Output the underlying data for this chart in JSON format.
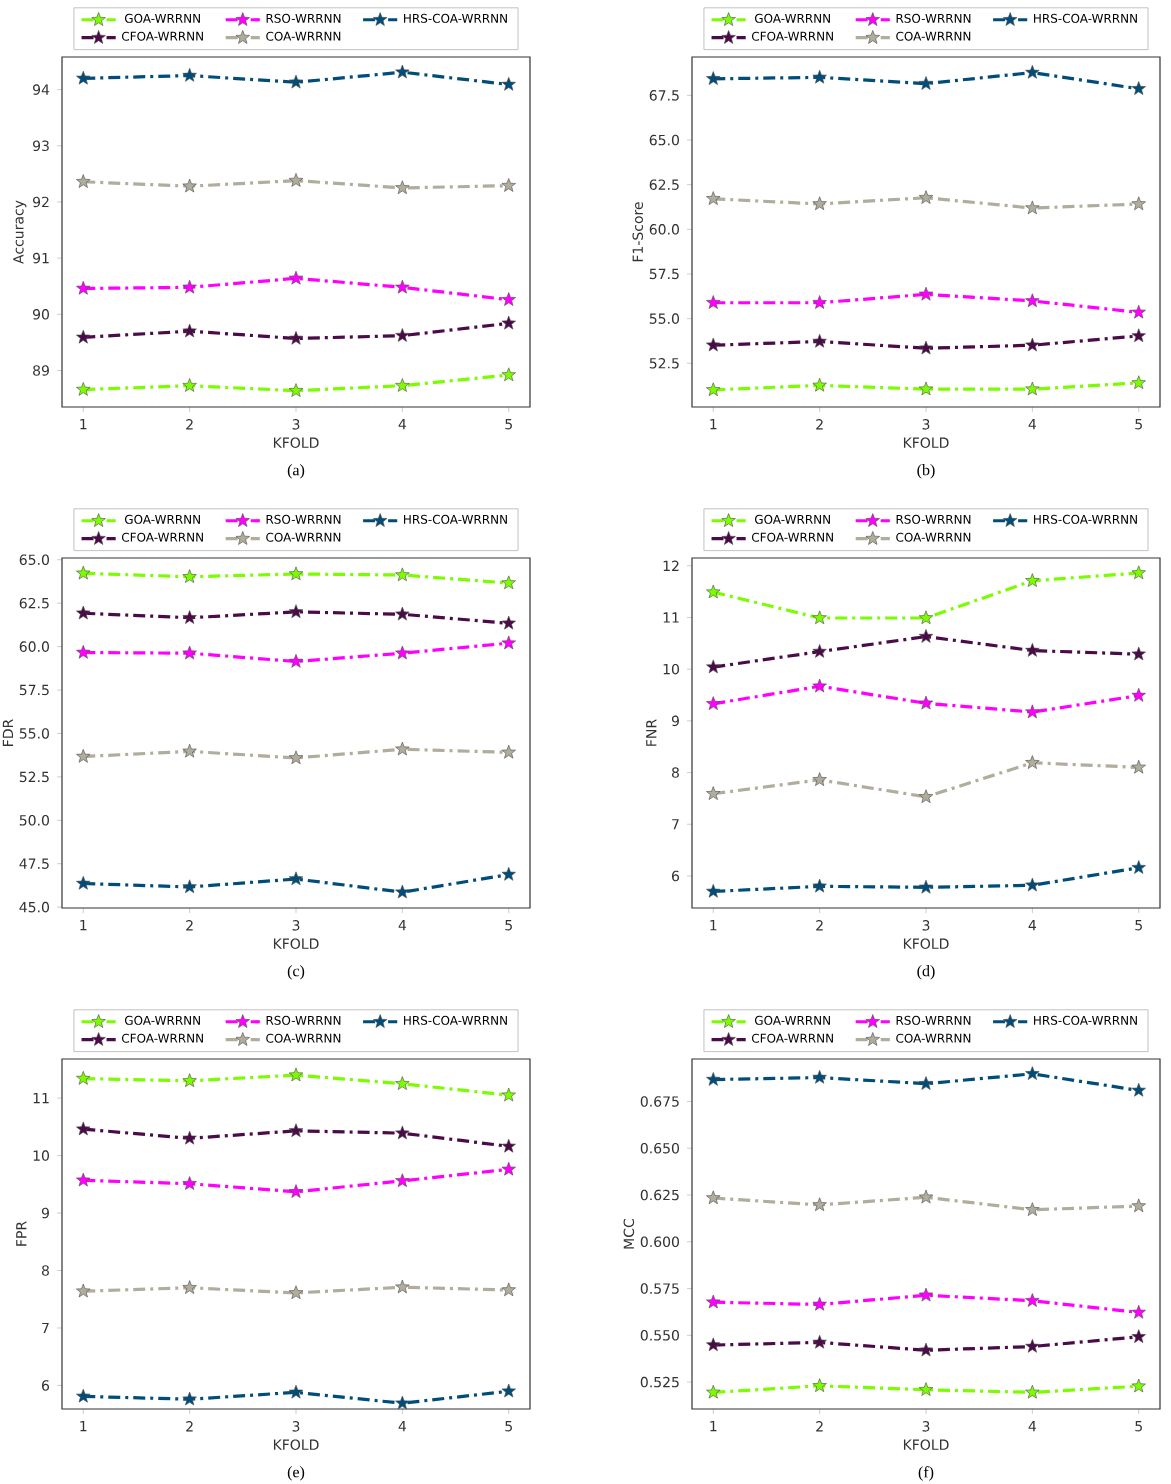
{
  "chart_data": [
    {
      "type": "line",
      "xlabel": "KFOLD",
      "ylabel": "Accuracy",
      "x": [
        1,
        2,
        3,
        4,
        5
      ],
      "xlim": [
        0.8,
        5.2
      ],
      "xticks": [
        1,
        2,
        3,
        4,
        5
      ],
      "ylim": [
        88.35,
        94.58
      ],
      "yticks": [
        89,
        90,
        91,
        92,
        93,
        94
      ],
      "legend": "top",
      "marker": "star",
      "line_style": "dashdot",
      "annotations": [
        "(a)"
      ],
      "series": [
        {
          "name": "GOA-WRRNN",
          "color": "#7cfc00",
          "values": [
            88.66,
            88.73,
            88.64,
            88.73,
            88.92
          ]
        },
        {
          "name": "CFOA-WRRNN",
          "color": "#4b0a48",
          "values": [
            89.59,
            89.7,
            89.57,
            89.62,
            89.84
          ]
        },
        {
          "name": "RSO-WRRNN",
          "color": "#ff00ff",
          "values": [
            90.46,
            90.48,
            90.64,
            90.48,
            90.26
          ]
        },
        {
          "name": "COA-WRRNN",
          "color": "#b0ad9c",
          "values": [
            92.36,
            92.28,
            92.38,
            92.25,
            92.29
          ]
        },
        {
          "name": "HRS-COA-WRRNN",
          "color": "#004d7a",
          "values": [
            94.2,
            94.25,
            94.13,
            94.31,
            94.09
          ]
        }
      ]
    },
    {
      "type": "line",
      "xlabel": "KFOLD",
      "ylabel": "F1-Score",
      "x": [
        1,
        2,
        3,
        4,
        5
      ],
      "xlim": [
        0.8,
        5.2
      ],
      "xticks": [
        1,
        2,
        3,
        4,
        5
      ],
      "ylim": [
        50.05,
        69.65
      ],
      "yticks": [
        52.5,
        {
          "value": 55,
          "label": "55.0"
        },
        57.5,
        {
          "value": 60,
          "label": "60.0"
        },
        62.5,
        {
          "value": 65,
          "label": "65.0"
        },
        67.5
      ],
      "legend": "top",
      "marker": "star",
      "line_style": "dashdot",
      "annotations": [
        "(b)"
      ],
      "series": [
        {
          "name": "GOA-WRRNN",
          "color": "#7cfc00",
          "values": [
            51.01,
            51.26,
            51.05,
            51.05,
            51.4
          ]
        },
        {
          "name": "CFOA-WRRNN",
          "color": "#4b0a48",
          "values": [
            53.51,
            53.72,
            53.34,
            53.51,
            54.03
          ]
        },
        {
          "name": "RSO-WRRNN",
          "color": "#ff00ff",
          "values": [
            55.89,
            55.89,
            56.36,
            55.99,
            55.35
          ]
        },
        {
          "name": "COA-WRRNN",
          "color": "#b0ad9c",
          "values": [
            61.71,
            61.42,
            61.77,
            61.19,
            61.42
          ]
        },
        {
          "name": "HRS-COA-WRRNN",
          "color": "#004d7a",
          "values": [
            68.43,
            68.51,
            68.16,
            68.78,
            67.87
          ]
        }
      ]
    },
    {
      "type": "line",
      "xlabel": "KFOLD",
      "ylabel": "FDR",
      "x": [
        1,
        2,
        3,
        4,
        5
      ],
      "xlim": [
        0.8,
        5.2
      ],
      "xticks": [
        1,
        2,
        3,
        4,
        5
      ],
      "ylim": [
        44.95,
        65.1
      ],
      "yticks": [
        {
          "value": 45,
          "label": "45.0"
        },
        47.5,
        {
          "value": 50,
          "label": "50.0"
        },
        52.5,
        {
          "value": 55,
          "label": "55.0"
        },
        57.5,
        {
          "value": 60,
          "label": "60.0"
        },
        62.5,
        {
          "value": 65,
          "label": "65.0"
        }
      ],
      "legend": "top",
      "marker": "star",
      "line_style": "dashdot",
      "annotations": [
        "(c)"
      ],
      "series": [
        {
          "name": "GOA-WRRNN",
          "color": "#7cfc00",
          "values": [
            64.22,
            64.02,
            64.18,
            64.12,
            63.66
          ]
        },
        {
          "name": "CFOA-WRRNN",
          "color": "#4b0a48",
          "values": [
            61.92,
            61.66,
            62.0,
            61.86,
            61.34
          ]
        },
        {
          "name": "RSO-WRRNN",
          "color": "#ff00ff",
          "values": [
            59.66,
            59.62,
            59.14,
            59.62,
            60.2
          ]
        },
        {
          "name": "COA-WRRNN",
          "color": "#b0ad9c",
          "values": [
            53.67,
            53.97,
            53.59,
            54.09,
            53.91
          ]
        },
        {
          "name": "HRS-COA-WRRNN",
          "color": "#004d7a",
          "values": [
            46.36,
            46.16,
            46.62,
            45.86,
            46.88
          ]
        }
      ]
    },
    {
      "type": "line",
      "xlabel": "KFOLD",
      "ylabel": "FNR",
      "x": [
        1,
        2,
        3,
        4,
        5
      ],
      "xlim": [
        0.8,
        5.2
      ],
      "xticks": [
        1,
        2,
        3,
        4,
        5
      ],
      "ylim": [
        5.38,
        12.15
      ],
      "yticks": [
        6,
        7,
        8,
        9,
        10,
        11,
        12
      ],
      "legend": "top",
      "marker": "star",
      "line_style": "dashdot",
      "annotations": [
        "(d)"
      ],
      "series": [
        {
          "name": "GOA-WRRNN",
          "color": "#7cfc00",
          "values": [
            11.49,
            10.99,
            10.99,
            11.71,
            11.86
          ]
        },
        {
          "name": "CFOA-WRRNN",
          "color": "#4b0a48",
          "values": [
            10.04,
            10.34,
            10.63,
            10.36,
            10.29
          ]
        },
        {
          "name": "RSO-WRRNN",
          "color": "#ff00ff",
          "values": [
            9.33,
            9.67,
            9.34,
            9.17,
            9.49
          ]
        },
        {
          "name": "COA-WRRNN",
          "color": "#b0ad9c",
          "values": [
            7.59,
            7.86,
            7.53,
            8.19,
            8.1
          ]
        },
        {
          "name": "HRS-COA-WRRNN",
          "color": "#004d7a",
          "values": [
            5.7,
            5.8,
            5.78,
            5.82,
            6.16
          ]
        }
      ]
    },
    {
      "type": "line",
      "xlabel": "KFOLD",
      "ylabel": "FPR",
      "x": [
        1,
        2,
        3,
        4,
        5
      ],
      "xlim": [
        0.8,
        5.2
      ],
      "xticks": [
        1,
        2,
        3,
        4,
        5
      ],
      "ylim": [
        5.59,
        11.68
      ],
      "yticks": [
        6,
        7,
        8,
        9,
        10,
        11
      ],
      "legend": "top",
      "marker": "star",
      "line_style": "dashdot",
      "annotations": [
        "(e)"
      ],
      "series": [
        {
          "name": "GOA-WRRNN",
          "color": "#7cfc00",
          "values": [
            11.34,
            11.3,
            11.4,
            11.25,
            11.05
          ]
        },
        {
          "name": "CFOA-WRRNN",
          "color": "#4b0a48",
          "values": [
            10.46,
            10.3,
            10.43,
            10.39,
            10.16
          ]
        },
        {
          "name": "RSO-WRRNN",
          "color": "#ff00ff",
          "values": [
            9.57,
            9.51,
            9.37,
            9.56,
            9.76
          ]
        },
        {
          "name": "COA-WRRNN",
          "color": "#b0ad9c",
          "values": [
            7.64,
            7.7,
            7.61,
            7.71,
            7.66
          ]
        },
        {
          "name": "HRS-COA-WRRNN",
          "color": "#004d7a",
          "values": [
            5.81,
            5.76,
            5.88,
            5.69,
            5.9
          ]
        }
      ]
    },
    {
      "type": "line",
      "xlabel": "KFOLD",
      "ylabel": "MCC",
      "x": [
        1,
        2,
        3,
        4,
        5
      ],
      "xlim": [
        0.8,
        5.2
      ],
      "xticks": [
        1,
        2,
        3,
        4,
        5
      ],
      "ylim": [
        0.5106,
        0.6977
      ],
      "yticks": [
        0.525,
        {
          "value": 0.55,
          "label": "0.550"
        },
        0.575,
        {
          "value": 0.6,
          "label": "0.600"
        },
        0.625,
        {
          "value": 0.65,
          "label": "0.650"
        },
        0.675
      ],
      "legend": "top",
      "marker": "star",
      "line_style": "dashdot",
      "annotations": [
        "(f)"
      ],
      "series": [
        {
          "name": "GOA-WRRNN",
          "color": "#7cfc00",
          "values": [
            0.5195,
            0.523,
            0.5209,
            0.5195,
            0.5228
          ]
        },
        {
          "name": "CFOA-WRRNN",
          "color": "#4b0a48",
          "values": [
            0.5448,
            0.5462,
            0.542,
            0.544,
            0.5492
          ]
        },
        {
          "name": "RSO-WRRNN",
          "color": "#ff00ff",
          "values": [
            0.5677,
            0.5665,
            0.5714,
            0.5685,
            0.5622
          ]
        },
        {
          "name": "COA-WRRNN",
          "color": "#b0ad9c",
          "values": [
            0.6234,
            0.6197,
            0.6238,
            0.6171,
            0.6191
          ]
        },
        {
          "name": "HRS-COA-WRRNN",
          "color": "#004d7a",
          "values": [
            0.6867,
            0.6878,
            0.6845,
            0.6898,
            0.6809
          ]
        }
      ]
    }
  ]
}
